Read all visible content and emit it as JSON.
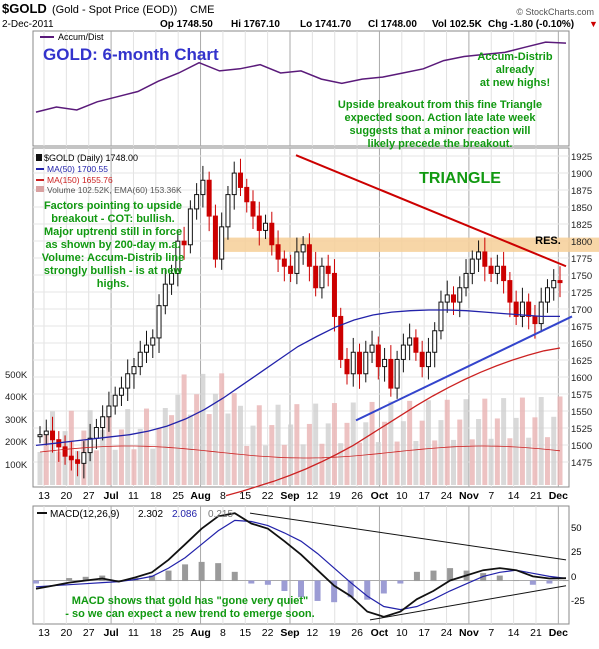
{
  "header": {
    "symbol": "$GOLD",
    "name": "(Gold - Spot Price (EOD))",
    "exchange": "CME",
    "date": "2-Dec-2011",
    "open": "Op 1748.50",
    "high": "Hi 1767.10",
    "low": "Lo 1741.70",
    "close": "Cl 1748.00",
    "volume": "Vol 102.5K",
    "change": "Chg -1.80 (-0.10%)",
    "change_arrow": "▼",
    "copyright": "© StockCharts.com"
  },
  "accum_panel": {
    "legend": "Accum/Dist",
    "title": "GOLD: 6-month Chart",
    "note1": [
      "Accum-Distrib",
      "already",
      "at new highs!"
    ],
    "note2": [
      "Upside breakout from this fine Triangle",
      "expected soon. Action late late week",
      "suggests that a minor reaction will",
      "likely precede the breakout."
    ]
  },
  "price_panel": {
    "legend_main": "$GOLD (Daily) 1748.00",
    "legend_ma50": "MA(50) 1700.55",
    "legend_ma150": "MA(150) 1655.76",
    "legend_vol": "Volume 102.52K, EMA(60) 153.36K",
    "triangle_label": "TRIANGLE",
    "res_label": "RES.",
    "factors": [
      "Factors pointing to upside",
      "breakout - COT: bullish.",
      "Major uptrend still in force",
      "as shown by 200-day m.a.",
      "Volume: Accum-Distrib line",
      "strongly bullish - is at new",
      "highs."
    ],
    "y_ticks": [
      "1925",
      "1900",
      "1875",
      "1850",
      "1825",
      "1800",
      "1775",
      "1750",
      "1725",
      "1700",
      "1675",
      "1650",
      "1625",
      "1600",
      "1575",
      "1550",
      "1525",
      "1500",
      "1475"
    ],
    "vol_ticks": [
      "500K",
      "400K",
      "300K",
      "200K",
      "100K"
    ]
  },
  "x_labels": [
    "13",
    "20",
    "27",
    "Jul",
    "11",
    "18",
    "25",
    "Aug",
    "8",
    "15",
    "22",
    "Sep",
    "12",
    "19",
    "26",
    "Oct",
    "10",
    "17",
    "24",
    "Nov",
    "7",
    "14",
    "21",
    "Dec"
  ],
  "macd_panel": {
    "legend_name": "MACD(12,26,9)",
    "legend_macd": "2.302",
    "legend_signal": "2.086",
    "legend_hist": "0.215",
    "note": [
      "MACD shows that gold has \"gone very quiet\"",
      "- so we can expect a new trend to emerge soon."
    ],
    "y_ticks": [
      "50",
      "25",
      "0",
      "-25"
    ]
  },
  "colors": {
    "up": "#111111",
    "down": "#cc0000",
    "ma50": "#2222aa",
    "ma150": "#cc2222",
    "accum": "#5a1a7a",
    "note": "#119911",
    "trend_res": "#cc0000",
    "trend_sup": "#3344cc",
    "band": "#f6cf98",
    "title": "#3333cc"
  },
  "chart_data": {
    "type": "line",
    "title": "GOLD: 6-month Chart",
    "x_labels": [
      "13",
      "20",
      "27",
      "Jul",
      "11",
      "18",
      "25",
      "Aug",
      "8",
      "15",
      "22",
      "Sep",
      "12",
      "19",
      "26",
      "Oct",
      "10",
      "17",
      "24",
      "Nov",
      "7",
      "14",
      "21",
      "Dec"
    ],
    "close": [
      1535,
      1540,
      1528,
      1518,
      1505,
      1500,
      1495,
      1510,
      1530,
      1545,
      1560,
      1575,
      1590,
      1600,
      1620,
      1630,
      1650,
      1660,
      1670,
      1715,
      1745,
      1760,
      1805,
      1800,
      1850,
      1870,
      1890,
      1840,
      1780,
      1825,
      1870,
      1900,
      1880,
      1860,
      1840,
      1820,
      1830,
      1800,
      1780,
      1770,
      1760,
      1790,
      1800,
      1770,
      1740,
      1770,
      1760,
      1700,
      1640,
      1620,
      1650,
      1620,
      1650,
      1660,
      1630,
      1640,
      1600,
      1640,
      1660,
      1670,
      1650,
      1630,
      1650,
      1680,
      1720,
      1730,
      1720,
      1740,
      1760,
      1780,
      1790,
      1770,
      1760,
      1770,
      1750,
      1720,
      1700,
      1720,
      1700,
      1690,
      1720,
      1740,
      1750,
      1748
    ],
    "ma50": [
      1520,
      1523,
      1526,
      1529,
      1532,
      1535,
      1540,
      1547,
      1557,
      1570,
      1586,
      1604,
      1622,
      1640,
      1658,
      1672,
      1685,
      1695,
      1702,
      1706,
      1708,
      1709,
      1709,
      1708,
      1706,
      1704,
      1702,
      1700,
      1700
    ],
    "ma150": [
      1450,
      1456,
      1463,
      1470,
      1478,
      1487,
      1497,
      1508,
      1520,
      1534,
      1548,
      1562,
      1576,
      1589,
      1601,
      1612,
      1622,
      1631,
      1639,
      1646,
      1652,
      1656
    ],
    "resistance_line": {
      "from": 1925,
      "to": 1770
    },
    "support_line": {
      "from": 1555,
      "to": 1700
    },
    "resistance_zone": [
      1790,
      1810
    ],
    "ylim": [
      1462,
      1935
    ],
    "accum_dist": [
      0.3,
      0.35,
      0.32,
      0.4,
      0.45,
      0.5,
      0.6,
      0.68,
      0.78,
      0.7,
      0.72,
      0.76,
      0.68,
      0.7,
      0.62,
      0.58,
      0.62,
      0.64,
      0.68,
      0.72,
      0.8,
      0.84,
      0.86,
      0.88,
      0.93,
      0.98,
      0.97
    ],
    "macd": [
      -8,
      -5,
      -2,
      0,
      2,
      -1,
      3,
      8,
      20,
      35,
      50,
      62,
      65,
      55,
      50,
      38,
      25,
      10,
      -5,
      -15,
      -30,
      -35,
      -30,
      -18,
      -10,
      0,
      5,
      10,
      12,
      10,
      4,
      2,
      2.3
    ],
    "signal": [
      -6,
      -5,
      -4,
      -3,
      -2,
      -1,
      1,
      4,
      12,
      22,
      35,
      48,
      58,
      57,
      53,
      46,
      38,
      26,
      12,
      -2,
      -15,
      -25,
      -28,
      -25,
      -18,
      -10,
      -3,
      4,
      8,
      10,
      7,
      4,
      2.1
    ],
    "macd_ylim": [
      -40,
      70
    ]
  }
}
